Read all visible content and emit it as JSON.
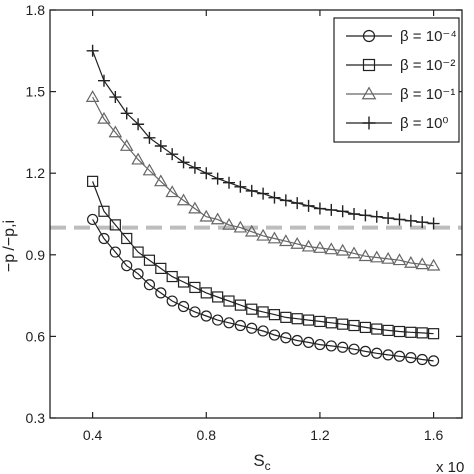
{
  "chart_data": {
    "type": "line",
    "xlabel_main": "S",
    "xlabel_sub": "c",
    "ylabel": "−p /−p,i",
    "x_multiplier_label": "x 10",
    "xlim": [
      0.25,
      1.7
    ],
    "ylim": [
      0.3,
      1.8
    ],
    "x_ticks": [
      0.4,
      0.8,
      1.2,
      1.6
    ],
    "x_tick_labels": [
      "0.4",
      "0.8",
      "1.2",
      "1.6"
    ],
    "y_ticks": [
      0.3,
      0.6,
      0.9,
      1.2,
      1.5,
      1.8
    ],
    "y_tick_labels": [
      "0.3",
      "0.6",
      "0.9",
      "1.2",
      "1.5",
      "1.8"
    ],
    "reference_line": {
      "y": 1.0,
      "color": "#bdbdbd",
      "style": "dashed"
    },
    "legend_position": "top-right",
    "series": [
      {
        "name": "β = 10⁻⁴",
        "marker": "circle",
        "color": "#222222",
        "x": [
          0.4,
          0.44,
          0.48,
          0.52,
          0.56,
          0.6,
          0.64,
          0.68,
          0.72,
          0.76,
          0.8,
          0.84,
          0.88,
          0.92,
          0.96,
          1.0,
          1.04,
          1.08,
          1.12,
          1.16,
          1.2,
          1.24,
          1.28,
          1.32,
          1.36,
          1.4,
          1.44,
          1.48,
          1.52,
          1.56,
          1.6
        ],
        "y": [
          1.03,
          0.96,
          0.91,
          0.86,
          0.83,
          0.79,
          0.76,
          0.73,
          0.71,
          0.69,
          0.675,
          0.66,
          0.65,
          0.64,
          0.63,
          0.62,
          0.605,
          0.595,
          0.585,
          0.578,
          0.57,
          0.565,
          0.56,
          0.553,
          0.545,
          0.538,
          0.532,
          0.527,
          0.522,
          0.515,
          0.51
        ]
      },
      {
        "name": "β = 10⁻²",
        "marker": "square",
        "color": "#222222",
        "x": [
          0.4,
          0.44,
          0.48,
          0.52,
          0.56,
          0.6,
          0.64,
          0.68,
          0.72,
          0.76,
          0.8,
          0.84,
          0.88,
          0.92,
          0.96,
          1.0,
          1.04,
          1.08,
          1.12,
          1.16,
          1.2,
          1.24,
          1.28,
          1.32,
          1.36,
          1.4,
          1.44,
          1.48,
          1.52,
          1.56,
          1.6
        ],
        "y": [
          1.17,
          1.06,
          1.01,
          0.96,
          0.91,
          0.88,
          0.85,
          0.82,
          0.8,
          0.78,
          0.76,
          0.745,
          0.73,
          0.715,
          0.7,
          0.69,
          0.68,
          0.67,
          0.665,
          0.66,
          0.655,
          0.65,
          0.645,
          0.64,
          0.633,
          0.627,
          0.622,
          0.618,
          0.615,
          0.613,
          0.61
        ]
      },
      {
        "name": "β = 10⁻¹",
        "marker": "triangle",
        "color": "#666666",
        "x": [
          0.4,
          0.44,
          0.48,
          0.52,
          0.56,
          0.6,
          0.64,
          0.68,
          0.72,
          0.76,
          0.8,
          0.84,
          0.88,
          0.92,
          0.96,
          1.0,
          1.04,
          1.08,
          1.12,
          1.16,
          1.2,
          1.24,
          1.28,
          1.32,
          1.36,
          1.4,
          1.44,
          1.48,
          1.52,
          1.56,
          1.6
        ],
        "y": [
          1.48,
          1.4,
          1.35,
          1.3,
          1.25,
          1.21,
          1.17,
          1.13,
          1.1,
          1.07,
          1.04,
          1.03,
          1.01,
          1.0,
          0.985,
          0.97,
          0.96,
          0.95,
          0.94,
          0.93,
          0.925,
          0.92,
          0.915,
          0.905,
          0.895,
          0.89,
          0.885,
          0.88,
          0.87,
          0.865,
          0.86
        ]
      },
      {
        "name": "β = 10⁰",
        "marker": "plus",
        "color": "#222222",
        "x": [
          0.4,
          0.44,
          0.48,
          0.52,
          0.56,
          0.6,
          0.64,
          0.68,
          0.72,
          0.76,
          0.8,
          0.84,
          0.88,
          0.92,
          0.96,
          1.0,
          1.04,
          1.08,
          1.12,
          1.16,
          1.2,
          1.24,
          1.28,
          1.32,
          1.36,
          1.4,
          1.44,
          1.48,
          1.52,
          1.56,
          1.6
        ],
        "y": [
          1.65,
          1.54,
          1.48,
          1.42,
          1.38,
          1.33,
          1.3,
          1.27,
          1.24,
          1.22,
          1.2,
          1.18,
          1.165,
          1.15,
          1.135,
          1.125,
          1.11,
          1.1,
          1.09,
          1.08,
          1.07,
          1.065,
          1.06,
          1.05,
          1.045,
          1.04,
          1.035,
          1.03,
          1.025,
          1.02,
          1.015
        ]
      }
    ]
  }
}
